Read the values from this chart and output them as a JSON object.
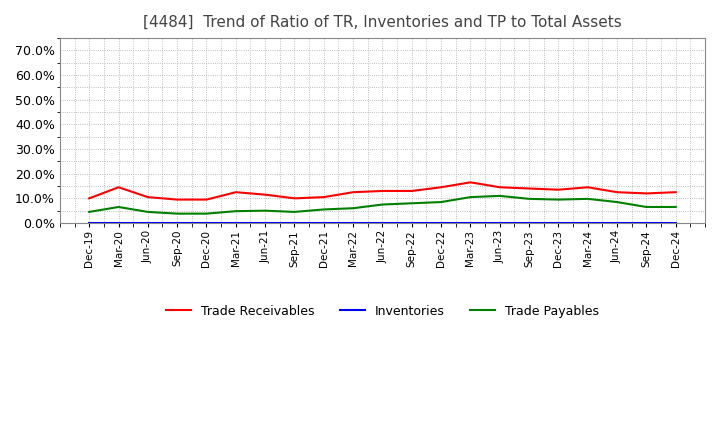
{
  "title": "[4484]  Trend of Ratio of TR, Inventories and TP to Total Assets",
  "title_fontsize": 11,
  "background_color": "#ffffff",
  "plot_background": "#ffffff",
  "grid_color": "#aaaaaa",
  "ylim": [
    0.0,
    0.75
  ],
  "yticks": [
    0.0,
    0.1,
    0.2,
    0.3,
    0.4,
    0.5,
    0.6,
    0.7
  ],
  "x_labels": [
    "Dec-19",
    "Mar-20",
    "Jun-20",
    "Sep-20",
    "Dec-20",
    "Mar-21",
    "Jun-21",
    "Sep-21",
    "Dec-21",
    "Mar-22",
    "Jun-22",
    "Sep-22",
    "Dec-22",
    "Mar-23",
    "Jun-23",
    "Sep-23",
    "Dec-23",
    "Mar-24",
    "Jun-24",
    "Sep-24",
    "Dec-24"
  ],
  "trade_receivables": [
    0.1,
    0.145,
    0.105,
    0.095,
    0.095,
    0.125,
    0.115,
    0.1,
    0.105,
    0.125,
    0.13,
    0.13,
    0.145,
    0.165,
    0.145,
    0.14,
    0.135,
    0.145,
    0.125,
    0.12,
    0.125
  ],
  "inventories": [
    0.002,
    0.002,
    0.002,
    0.002,
    0.002,
    0.002,
    0.002,
    0.002,
    0.002,
    0.002,
    0.002,
    0.002,
    0.002,
    0.002,
    0.002,
    0.002,
    0.002,
    0.002,
    0.002,
    0.002,
    0.002
  ],
  "trade_payables": [
    0.045,
    0.065,
    0.045,
    0.038,
    0.038,
    0.048,
    0.05,
    0.045,
    0.055,
    0.06,
    0.075,
    0.08,
    0.085,
    0.105,
    0.11,
    0.098,
    0.095,
    0.098,
    0.085,
    0.065,
    0.065
  ],
  "tr_color": "#ff0000",
  "inv_color": "#0000ff",
  "tp_color": "#008000",
  "line_width": 1.5,
  "legend_labels": [
    "Trade Receivables",
    "Inventories",
    "Trade Payables"
  ],
  "legend_ncol": 3
}
